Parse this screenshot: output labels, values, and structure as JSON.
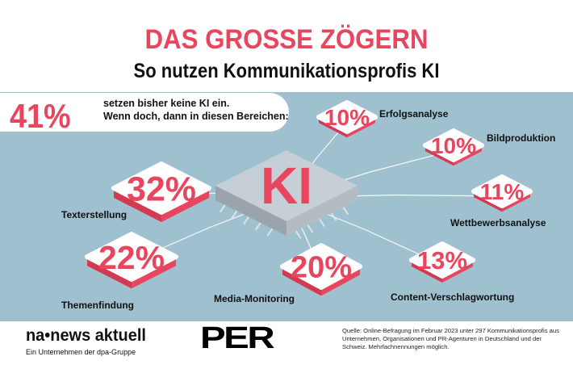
{
  "header": {
    "title": "DAS GROSSE ZÖGERN",
    "subtitle": "So nutzen Kommunikationsprofis KI"
  },
  "summary": {
    "value": "41%",
    "line1": "setzen bisher keine KI ein.",
    "line2": "Wenn doch, dann in diesen Bereichen:"
  },
  "center_label": "KI",
  "colors": {
    "accent": "#e8455e",
    "panel": "#9fc0cf",
    "tile": "#ffffff",
    "tile_side": "#e8455e",
    "chip": "#c7cfd6"
  },
  "chart_data": {
    "type": "bar",
    "title": "",
    "categories": [
      "Erfolgsanalyse",
      "Bildproduktion",
      "Wettbewerbsanalyse",
      "Content-Verschlagwortung",
      "Media-Monitoring",
      "Themenfindung",
      "Texterstellung"
    ],
    "values": [
      10,
      10,
      11,
      13,
      20,
      22,
      32
    ],
    "value_labels": [
      "10%",
      "10%",
      "11%",
      "13%",
      "20%",
      "22%",
      "32%"
    ],
    "unit": "%"
  },
  "footer": {
    "logo_news": "na•news aktuell",
    "logo_news_sub": "Ein Unternehmen der dpa-Gruppe",
    "logo_per": "PER",
    "source": "Quelle: Online-Befragung im Februar 2023 unter 297 Kommunikationsprofis aus Unternehmen, Organisationen und PR-Agenturen in Deutschland und der Schweiz. Mehrfachnennungen möglich."
  }
}
